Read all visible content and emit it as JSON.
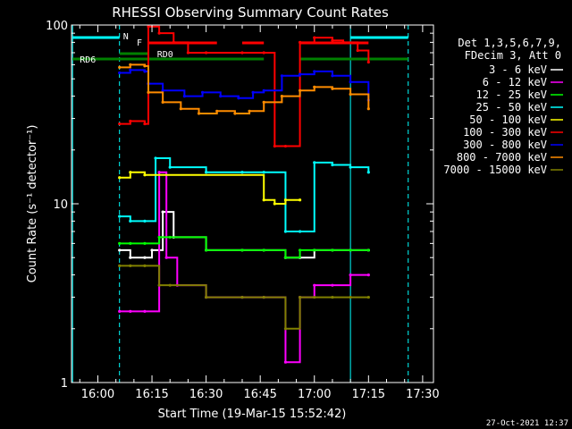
{
  "chart_data": {
    "type": "line",
    "title": "RHESSI Observing Summary Count Rates",
    "xlabel": "Start Time (19-Mar-15 15:52:42)",
    "ylabel": "Count Rate (s⁻¹ detector⁻¹)",
    "y_scale": "log",
    "ylim": [
      1,
      100
    ],
    "xlim": [
      "15:52:42",
      "17:33:00"
    ],
    "x_ticks": [
      "16:00",
      "16:15",
      "16:30",
      "16:45",
      "17:00",
      "17:15",
      "17:30"
    ],
    "y_ticks": [
      "1",
      "10",
      "100"
    ],
    "grid": false,
    "legend_position": "right",
    "legend_header": [
      "Det 1,3,5,6,7,9,",
      "FDecim 3, Att 0"
    ],
    "series": [
      {
        "name": "3 - 6 keV",
        "color": "#ffffff",
        "x": [
          "16:06",
          "16:09",
          "16:13",
          "16:15",
          "16:18",
          "16:21",
          "16:30",
          "16:40",
          "16:46",
          "16:52",
          "16:56",
          "17:00",
          "17:05",
          "17:10",
          "17:15"
        ],
        "y": [
          5.5,
          5.0,
          5.0,
          5.5,
          9.0,
          6.5,
          5.5,
          5.5,
          5.5,
          5.0,
          5.0,
          5.5,
          5.5,
          5.5,
          5.5
        ]
      },
      {
        "name": "6 - 12 keV",
        "color": "#ff00ff",
        "x": [
          "16:06",
          "16:09",
          "16:13",
          "16:17",
          "16:19",
          "16:22",
          "16:30",
          "16:40",
          "16:46",
          "16:52",
          "16:56",
          "17:00",
          "17:05",
          "17:10",
          "17:15"
        ],
        "y": [
          2.5,
          2.5,
          2.5,
          15.0,
          5.0,
          3.5,
          3.0,
          3.0,
          3.0,
          1.3,
          3.0,
          3.5,
          3.5,
          4.0,
          4.0
        ]
      },
      {
        "name": "12 - 25 keV",
        "color": "#00ff00",
        "x": [
          "16:06",
          "16:09",
          "16:13",
          "16:17",
          "16:20",
          "16:30",
          "16:40",
          "16:46",
          "16:52",
          "16:56",
          "17:00",
          "17:05",
          "17:10",
          "17:15"
        ],
        "y": [
          6.0,
          6.0,
          6.0,
          6.5,
          6.5,
          5.5,
          5.5,
          5.5,
          5.0,
          5.5,
          5.5,
          5.5,
          5.5,
          5.5
        ]
      },
      {
        "name": "25 - 50 keV",
        "color": "#00ffff",
        "x": [
          "16:06",
          "16:09",
          "16:13",
          "16:16",
          "16:20",
          "16:30",
          "16:40",
          "16:46",
          "16:52",
          "16:56",
          "17:00",
          "17:05",
          "17:10",
          "17:15"
        ],
        "y": [
          8.5,
          8.0,
          8.0,
          18.0,
          16.0,
          15.0,
          15.0,
          15.0,
          7.0,
          7.0,
          17.0,
          16.5,
          16.0,
          15.0
        ]
      },
      {
        "name": "50 - 100 keV",
        "color": "#ffff00",
        "x": [
          "16:06",
          "16:09",
          "16:13",
          "16:46",
          "16:49",
          "16:52",
          "16:56"
        ],
        "y": [
          14.0,
          15.0,
          14.5,
          10.5,
          10.0,
          10.5,
          10.5
        ]
      },
      {
        "name": "100 - 300 keV",
        "color": "#ff0000",
        "x": [
          "16:06",
          "16:09",
          "16:13",
          "16:14",
          "16:17",
          "16:21",
          "16:25",
          "16:30",
          "16:40",
          "16:46",
          "16:49",
          "16:52",
          "16:56",
          "17:00",
          "17:05",
          "17:08",
          "17:12",
          "17:15"
        ],
        "y": [
          28.0,
          29.0,
          28.0,
          98.0,
          90.0,
          80.0,
          70.0,
          70.0,
          70.0,
          70.0,
          21.0,
          21.0,
          80.0,
          85.0,
          82.0,
          80.0,
          72.0,
          62.0
        ]
      },
      {
        "name": "300 - 800 keV",
        "color": "#0000ff",
        "x": [
          "16:06",
          "16:09",
          "16:13",
          "16:14",
          "16:18",
          "16:24",
          "16:29",
          "16:34",
          "16:39",
          "16:43",
          "16:46",
          "16:51",
          "16:56",
          "17:00",
          "17:05",
          "17:10",
          "17:15"
        ],
        "y": [
          54.0,
          56.0,
          55.0,
          47.0,
          43.0,
          40.0,
          42.0,
          40.0,
          39.0,
          42.0,
          43.0,
          52.0,
          53.0,
          55.0,
          52.0,
          48.0,
          38.0
        ]
      },
      {
        "name": "800 - 7000 keV",
        "color": "#ff8c00",
        "x": [
          "16:06",
          "16:09",
          "16:13",
          "16:14",
          "16:18",
          "16:23",
          "16:28",
          "16:33",
          "16:38",
          "16:42",
          "16:46",
          "16:51",
          "16:56",
          "17:00",
          "17:05",
          "17:10",
          "17:15"
        ],
        "y": [
          58.0,
          60.0,
          59.0,
          42.0,
          37.0,
          34.0,
          32.0,
          33.0,
          32.0,
          33.0,
          37.0,
          40.0,
          43.0,
          45.0,
          44.0,
          41.0,
          34.0
        ]
      },
      {
        "name": "7000 - 15000 keV",
        "color": "#808000",
        "x": [
          "16:06",
          "16:09",
          "16:13",
          "16:17",
          "16:20",
          "16:30",
          "16:40",
          "16:46",
          "16:52",
          "16:56",
          "17:00",
          "17:05",
          "17:10",
          "17:15"
        ],
        "y": [
          4.5,
          4.5,
          4.5,
          3.5,
          3.5,
          3.0,
          3.0,
          3.0,
          2.0,
          3.0,
          3.0,
          3.0,
          3.0,
          3.0
        ]
      }
    ],
    "annotations": {
      "night": {
        "label": "N",
        "color": "#00ffff",
        "intervals": [
          [
            "15:53",
            "16:06"
          ],
          [
            "17:10",
            "17:26"
          ]
        ]
      },
      "flare": {
        "label": "F",
        "color": "#ff0000",
        "intervals": [
          [
            "16:14",
            "16:33"
          ],
          [
            "16:40",
            "16:46"
          ],
          [
            "16:56",
            "17:15"
          ]
        ]
      },
      "attenuator": [
        {
          "label": "RD0",
          "color": "#008000",
          "intervals": [
            [
              "16:06",
              "16:14"
            ]
          ]
        },
        {
          "label": "RD6",
          "color": "#008000",
          "intervals": [
            [
              "15:53",
              "16:14"
            ],
            [
              "16:14",
              "16:46"
            ],
            [
              "16:56",
              "17:26"
            ]
          ]
        }
      ]
    },
    "footer_timestamp": "27-Oct-2021 12:37"
  }
}
